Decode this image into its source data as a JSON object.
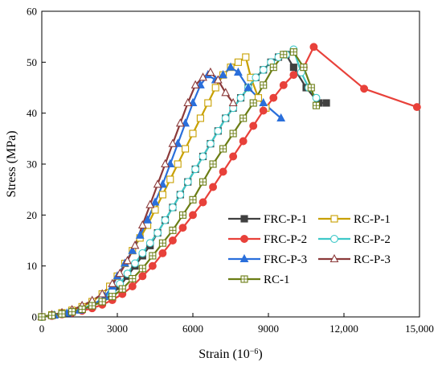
{
  "chart_data": {
    "type": "line",
    "xlabel": "Strain (10",
    "xlabel_exp": "−6",
    "xlabel_close": ")",
    "ylabel": "Stress (MPa)",
    "xlim": [
      0,
      15000
    ],
    "ylim": [
      0,
      60
    ],
    "xticks": [
      0,
      3000,
      6000,
      9000,
      12000,
      15000
    ],
    "xtick_labels": [
      "0",
      "3000",
      "6000",
      "9000",
      "12,000",
      "15,000"
    ],
    "yticks": [
      0,
      10,
      20,
      30,
      40,
      50,
      60
    ],
    "ytick_labels": [
      "0",
      "10",
      "20",
      "30",
      "40",
      "50",
      "60"
    ],
    "grid": false,
    "legend_position": "bottom-right",
    "series": [
      {
        "name": "FRC-P-1",
        "color": "#404040",
        "marker": "square-filled",
        "points": [
          [
            0,
            0
          ],
          [
            400,
            0.3
          ],
          [
            800,
            0.6
          ],
          [
            1200,
            1.0
          ],
          [
            1600,
            1.5
          ],
          [
            2000,
            2.2
          ],
          [
            2400,
            3.0
          ],
          [
            2800,
            4.5
          ],
          [
            3100,
            6.0
          ],
          [
            3400,
            8.0
          ],
          [
            3700,
            10.0
          ],
          [
            4000,
            12.0
          ],
          [
            4300,
            14.0
          ],
          [
            4600,
            16.5
          ],
          [
            4900,
            19.0
          ],
          [
            5200,
            21.5
          ],
          [
            5500,
            24.0
          ],
          [
            5800,
            26.5
          ],
          [
            6100,
            29.0
          ],
          [
            6400,
            31.5
          ],
          [
            6700,
            34.0
          ],
          [
            7000,
            36.5
          ],
          [
            7300,
            39.0
          ],
          [
            7600,
            41.0
          ],
          [
            7900,
            43.0
          ],
          [
            8200,
            45.0
          ],
          [
            8500,
            47.0
          ],
          [
            8800,
            48.5
          ],
          [
            9100,
            50.0
          ],
          [
            9400,
            51.0
          ],
          [
            9700,
            51.5
          ],
          [
            10000,
            49.0
          ],
          [
            10500,
            45.0
          ],
          [
            11000,
            42.0
          ],
          [
            11300,
            42.0
          ]
        ]
      },
      {
        "name": "RC-P-1",
        "color": "#c8a000",
        "marker": "square-open",
        "points": [
          [
            0,
            0
          ],
          [
            400,
            0.4
          ],
          [
            800,
            0.8
          ],
          [
            1200,
            1.3
          ],
          [
            1600,
            2.0
          ],
          [
            2000,
            3.0
          ],
          [
            2400,
            4.5
          ],
          [
            2700,
            6.0
          ],
          [
            3000,
            8.0
          ],
          [
            3300,
            10.5
          ],
          [
            3600,
            13.0
          ],
          [
            3900,
            15.5
          ],
          [
            4200,
            18.0
          ],
          [
            4500,
            21.0
          ],
          [
            4800,
            24.0
          ],
          [
            5100,
            27.0
          ],
          [
            5400,
            30.0
          ],
          [
            5700,
            33.0
          ],
          [
            6000,
            36.0
          ],
          [
            6300,
            39.0
          ],
          [
            6600,
            42.0
          ],
          [
            6900,
            45.0
          ],
          [
            7200,
            47.5
          ],
          [
            7500,
            49.0
          ],
          [
            7800,
            50.0
          ],
          [
            8100,
            51.0
          ],
          [
            8300,
            47.0
          ],
          [
            8600,
            43.0
          ],
          [
            8900,
            41.0
          ]
        ]
      },
      {
        "name": "FRC-P-2",
        "color": "#e8413a",
        "marker": "circle-filled",
        "points": [
          [
            0,
            0
          ],
          [
            400,
            0.2
          ],
          [
            800,
            0.5
          ],
          [
            1200,
            0.8
          ],
          [
            1600,
            1.2
          ],
          [
            2000,
            1.7
          ],
          [
            2400,
            2.4
          ],
          [
            2800,
            3.3
          ],
          [
            3200,
            4.5
          ],
          [
            3600,
            6.0
          ],
          [
            4000,
            8.0
          ],
          [
            4400,
            10.0
          ],
          [
            4800,
            12.5
          ],
          [
            5200,
            15.0
          ],
          [
            5600,
            17.5
          ],
          [
            6000,
            20.0
          ],
          [
            6400,
            22.5
          ],
          [
            6800,
            25.5
          ],
          [
            7200,
            28.5
          ],
          [
            7600,
            31.5
          ],
          [
            8000,
            34.5
          ],
          [
            8400,
            37.5
          ],
          [
            8800,
            40.5
          ],
          [
            9200,
            43.0
          ],
          [
            9600,
            45.5
          ],
          [
            10000,
            47.5
          ],
          [
            10400,
            49.0
          ],
          [
            10800,
            53.0
          ],
          [
            12800,
            44.8
          ],
          [
            14900,
            41.2
          ]
        ]
      },
      {
        "name": "RC-P-2",
        "color": "#3ec8c8",
        "marker": "circle-open",
        "points": [
          [
            0,
            0
          ],
          [
            400,
            0.3
          ],
          [
            800,
            0.6
          ],
          [
            1200,
            1.0
          ],
          [
            1600,
            1.6
          ],
          [
            2000,
            2.4
          ],
          [
            2400,
            3.5
          ],
          [
            2800,
            5.0
          ],
          [
            3100,
            6.5
          ],
          [
            3400,
            8.5
          ],
          [
            3700,
            10.5
          ],
          [
            4000,
            12.5
          ],
          [
            4300,
            14.5
          ],
          [
            4600,
            16.5
          ],
          [
            4900,
            19.0
          ],
          [
            5200,
            21.5
          ],
          [
            5500,
            24.0
          ],
          [
            5800,
            26.5
          ],
          [
            6100,
            29.0
          ],
          [
            6400,
            31.5
          ],
          [
            6700,
            34.0
          ],
          [
            7000,
            36.5
          ],
          [
            7300,
            39.0
          ],
          [
            7600,
            41.0
          ],
          [
            7900,
            43.0
          ],
          [
            8200,
            45.0
          ],
          [
            8500,
            47.0
          ],
          [
            8800,
            48.5
          ],
          [
            9100,
            50.0
          ],
          [
            9400,
            51.0
          ],
          [
            9700,
            51.5
          ],
          [
            10000,
            52.5
          ],
          [
            10300,
            48.0
          ],
          [
            10600,
            45.0
          ],
          [
            10900,
            43.0
          ]
        ]
      },
      {
        "name": "FRC-P-3",
        "color": "#2a6fdb",
        "marker": "triangle-filled",
        "points": [
          [
            0,
            0
          ],
          [
            500,
            0.3
          ],
          [
            1000,
            0.7
          ],
          [
            1500,
            1.3
          ],
          [
            2000,
            2.2
          ],
          [
            2500,
            4.0
          ],
          [
            2800,
            6.0
          ],
          [
            3000,
            8.0
          ],
          [
            3300,
            10.5
          ],
          [
            3600,
            13.0
          ],
          [
            3900,
            16.0
          ],
          [
            4200,
            19.0
          ],
          [
            4500,
            22.5
          ],
          [
            4800,
            26.0
          ],
          [
            5100,
            30.0
          ],
          [
            5400,
            34.0
          ],
          [
            5700,
            38.0
          ],
          [
            6000,
            42.0
          ],
          [
            6300,
            45.5
          ],
          [
            6600,
            47.5
          ],
          [
            6900,
            46.5
          ],
          [
            7200,
            47.5
          ],
          [
            7500,
            49.0
          ],
          [
            7800,
            48.0
          ],
          [
            8200,
            45.0
          ],
          [
            8800,
            42.0
          ],
          [
            9500,
            39.0
          ]
        ]
      },
      {
        "name": "RC-P-3",
        "color": "#8b3a3a",
        "marker": "triangle-open",
        "points": [
          [
            0,
            0
          ],
          [
            400,
            0.4
          ],
          [
            800,
            0.8
          ],
          [
            1200,
            1.4
          ],
          [
            1600,
            2.2
          ],
          [
            2000,
            3.2
          ],
          [
            2400,
            4.5
          ],
          [
            2800,
            6.5
          ],
          [
            3100,
            8.5
          ],
          [
            3400,
            11.0
          ],
          [
            3700,
            14.0
          ],
          [
            4000,
            18.0
          ],
          [
            4300,
            22.0
          ],
          [
            4600,
            26.0
          ],
          [
            4900,
            30.0
          ],
          [
            5200,
            34.0
          ],
          [
            5500,
            38.0
          ],
          [
            5800,
            42.0
          ],
          [
            6100,
            45.5
          ],
          [
            6400,
            47.0
          ],
          [
            6700,
            48.0
          ],
          [
            7000,
            46.5
          ],
          [
            7300,
            44.0
          ],
          [
            7600,
            42.0
          ]
        ]
      },
      {
        "name": "RC-1",
        "color": "#6b7d14",
        "marker": "square-cross",
        "points": [
          [
            0,
            0
          ],
          [
            400,
            0.3
          ],
          [
            800,
            0.6
          ],
          [
            1200,
            1.0
          ],
          [
            1600,
            1.5
          ],
          [
            2000,
            2.2
          ],
          [
            2400,
            3.0
          ],
          [
            2800,
            4.0
          ],
          [
            3200,
            5.5
          ],
          [
            3600,
            7.5
          ],
          [
            4000,
            9.5
          ],
          [
            4400,
            12.0
          ],
          [
            4800,
            14.5
          ],
          [
            5200,
            17.0
          ],
          [
            5600,
            20.0
          ],
          [
            6000,
            23.0
          ],
          [
            6400,
            26.5
          ],
          [
            6800,
            30.0
          ],
          [
            7200,
            33.0
          ],
          [
            7600,
            36.0
          ],
          [
            8000,
            39.0
          ],
          [
            8400,
            42.0
          ],
          [
            8800,
            45.5
          ],
          [
            9200,
            49.0
          ],
          [
            9600,
            51.5
          ],
          [
            10000,
            52.0
          ],
          [
            10400,
            49.0
          ],
          [
            10700,
            45.0
          ],
          [
            10900,
            41.5
          ]
        ]
      }
    ]
  }
}
